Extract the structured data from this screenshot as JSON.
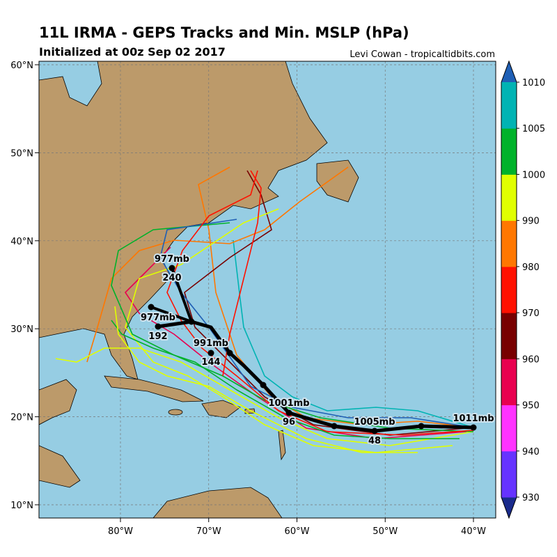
{
  "header": {
    "title": "11L IRMA - GEPS Tracks and Min. MSLP (hPa)",
    "subtitle": "Initialized at 00z Sep 02 2017",
    "credit": "Levi Cowan - tropicaltidbits.com"
  },
  "map": {
    "lat_labels": [
      "60°N",
      "50°N",
      "40°N",
      "30°N",
      "20°N",
      "10°N"
    ],
    "lon_labels": [
      "80°W",
      "70°W",
      "60°W",
      "50°W",
      "40°W"
    ]
  },
  "mean_track": {
    "pressure_labels": [
      "1011mb",
      "1005mb",
      "1001mb",
      "991mb",
      "977mb",
      "977mb"
    ],
    "hour_labels": [
      "48",
      "96",
      "144",
      "192",
      "240"
    ]
  },
  "colorbar": {
    "labels": [
      "930",
      "940",
      "950",
      "960",
      "970",
      "980",
      "990",
      "1000",
      "1005",
      "1010"
    ],
    "colors": [
      "#1a2b8c",
      "#6633ff",
      "#ff33ff",
      "#e8004f",
      "#780000",
      "#ff1100",
      "#ff7700",
      "#e0ff00",
      "#00b22a",
      "#00b3b3",
      "#1f5fb5"
    ]
  }
}
